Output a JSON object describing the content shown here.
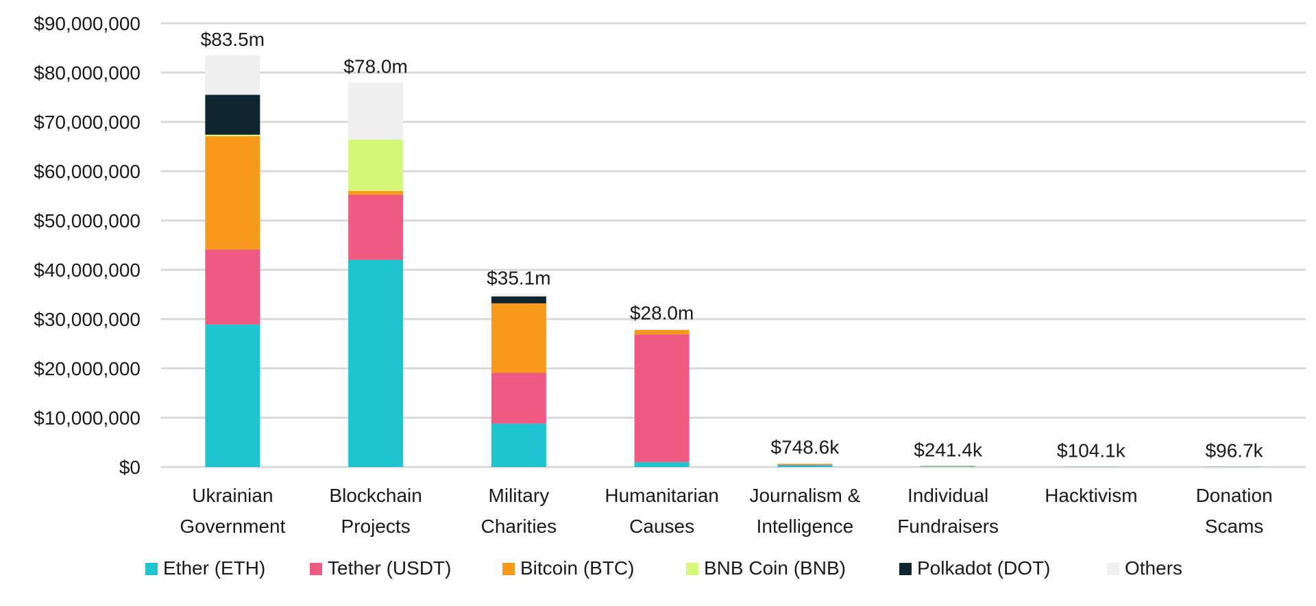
{
  "chart_data": {
    "type": "bar",
    "stacked": true,
    "title": "",
    "xlabel": "",
    "ylabel": "",
    "ylim": [
      0,
      90000000
    ],
    "y_ticks": [
      0,
      10000000,
      20000000,
      30000000,
      40000000,
      50000000,
      60000000,
      70000000,
      80000000,
      90000000
    ],
    "y_tick_labels": [
      "$0",
      "$10,000,000",
      "$20,000,000",
      "$30,000,000",
      "$40,000,000",
      "$50,000,000",
      "$60,000,000",
      "$70,000,000",
      "$80,000,000",
      "$90,000,000"
    ],
    "grid": true,
    "legend_position": "bottom",
    "categories": [
      [
        "Ukrainian",
        "Government"
      ],
      [
        "Blockchain",
        "Projects"
      ],
      [
        "Military",
        "Charities"
      ],
      [
        "Humanitarian",
        "Causes"
      ],
      [
        "Journalism &",
        "Intelligence"
      ],
      [
        "Individual",
        "Fundraisers"
      ],
      [
        "Hacktivism"
      ],
      [
        "Donation",
        "Scams"
      ]
    ],
    "totals": [
      "$83.5m",
      "$78.0m",
      "$35.1m",
      "$28.0m",
      "$748.6k",
      "$241.4k",
      "$104.1k",
      "$96.7k"
    ],
    "series": [
      {
        "name": "Ether (ETH)",
        "color": "#1ec5d1",
        "values": [
          28900000,
          42000000,
          8800000,
          1000000,
          350000,
          120000,
          50000,
          45000
        ]
      },
      {
        "name": "Tether (USDT)",
        "color": "#ef5a83",
        "values": [
          15200000,
          13200000,
          10300000,
          25900000,
          120000,
          40000,
          20000,
          20000
        ]
      },
      {
        "name": "Bitcoin (BTC)",
        "color": "#f7991c",
        "values": [
          23000000,
          800000,
          14100000,
          900000,
          150000,
          50000,
          20000,
          20000
        ]
      },
      {
        "name": "BNB Coin (BNB)",
        "color": "#d5f77a",
        "values": [
          300000,
          10400000,
          0,
          0,
          50000,
          10000,
          5000,
          5000
        ]
      },
      {
        "name": "Polkadot (DOT)",
        "color": "#0f2631",
        "values": [
          8100000,
          0,
          1400000,
          0,
          0,
          0,
          0,
          0
        ]
      },
      {
        "name": "Others",
        "color": "#f0eff0",
        "values": [
          8000000,
          11600000,
          500000,
          200000,
          78600,
          21400,
          9100,
          6700
        ]
      }
    ]
  }
}
